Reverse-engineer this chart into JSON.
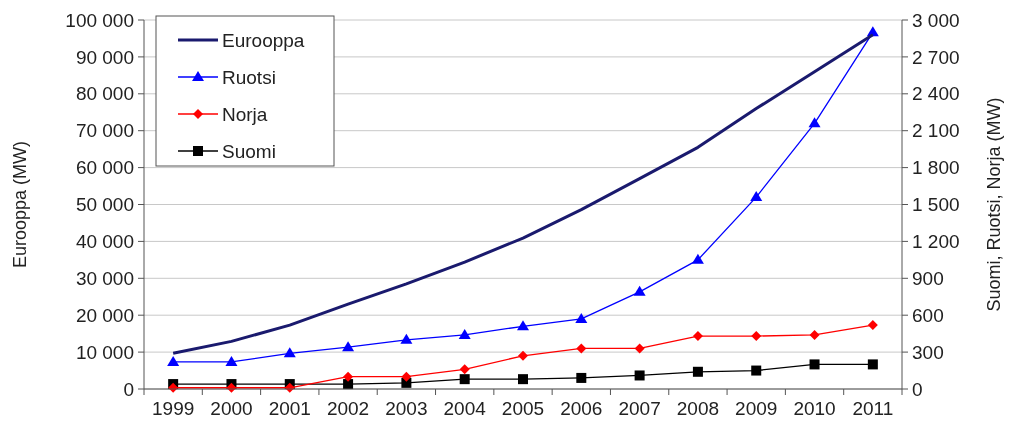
{
  "chart_data": {
    "type": "line",
    "ylabel": "Eurooppa (MW)",
    "y2label": "Suomi, Ruotsi, Norja (MW)",
    "categories": [
      "1999",
      "2000",
      "2001",
      "2002",
      "2003",
      "2004",
      "2005",
      "2006",
      "2007",
      "2008",
      "2009",
      "2010",
      "2011"
    ],
    "series": [
      {
        "name": "Eurooppa",
        "color": "#1a1a6e",
        "marker": "none",
        "values": [
          9700,
          12900,
          17300,
          23000,
          28500,
          34400,
          40900,
          48600,
          57000,
          65500,
          76000,
          86000,
          96000
        ]
      },
      {
        "name": "Ruotsi",
        "color": "#0000ff",
        "marker": "triangle",
        "axis": "y2",
        "values": [
          220,
          220,
          290,
          340,
          400,
          440,
          510,
          570,
          790,
          1050,
          1560,
          2160,
          2900
        ]
      },
      {
        "name": "Norja",
        "color": "#ff0000",
        "marker": "diamond",
        "axis": "y2",
        "values": [
          10,
          10,
          10,
          100,
          100,
          160,
          270,
          330,
          330,
          430,
          430,
          440,
          520
        ]
      },
      {
        "name": "Suomi",
        "color": "#000000",
        "marker": "square",
        "axis": "y2",
        "values": [
          40,
          40,
          40,
          40,
          50,
          80,
          80,
          90,
          110,
          140,
          150,
          200,
          200
        ]
      }
    ],
    "ylim": [
      0,
      100000
    ],
    "yticks": [
      0,
      {
        "value": 10000,
        "label": "10 000"
      },
      {
        "value": 20000,
        "label": "20 000"
      },
      {
        "value": 30000,
        "label": "30 000"
      },
      {
        "value": 40000,
        "label": "40 000"
      },
      {
        "value": 50000,
        "label": "50 000"
      },
      {
        "value": 60000,
        "label": "60 000"
      },
      {
        "value": 70000,
        "label": "70 000"
      },
      {
        "value": 80000,
        "label": "80 000"
      },
      {
        "value": 90000,
        "label": "90 000"
      },
      {
        "value": 100000,
        "label": "100 000"
      }
    ],
    "y2lim": [
      0,
      3000
    ],
    "y2ticks": [
      0,
      300,
      600,
      900,
      {
        "value": 1200,
        "label": "1 200"
      },
      {
        "value": 1500,
        "label": "1 500"
      },
      {
        "value": 1800,
        "label": "1 800"
      },
      {
        "value": 2100,
        "label": "2 100"
      },
      {
        "value": 2400,
        "label": "2 400"
      },
      {
        "value": 2700,
        "label": "2 700"
      },
      {
        "value": 3000,
        "label": "3 000"
      }
    ],
    "grid": "y",
    "legend": "top left",
    "line_style": "solid"
  }
}
